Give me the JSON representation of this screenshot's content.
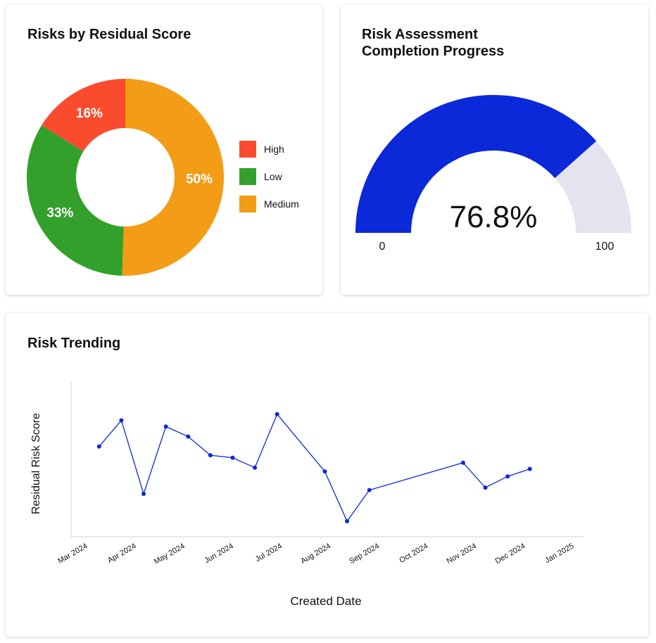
{
  "charts": {
    "donut": {
      "title": "Risks by Residual Score",
      "slices": [
        {
          "name": "High",
          "value": 16,
          "label": "16%",
          "color": "#fb4b2f"
        },
        {
          "name": "Low",
          "value": 33,
          "label": "33%",
          "color": "#34a02c"
        },
        {
          "name": "Medium",
          "value": 50,
          "label": "50%",
          "color": "#f39c16"
        }
      ]
    },
    "gauge": {
      "title_line1": "Risk Assessment",
      "title_line2": "Completion Progress",
      "value": 76.8,
      "value_label": "76.8%",
      "min_label": "0",
      "max_label": "100",
      "fill_color": "#0b28d9",
      "track_color": "#e3e4ef"
    },
    "trend": {
      "title": "Risk Trending",
      "xlabel": "Created Date",
      "ylabel": "Residual Risk Score",
      "ticks": [
        "Mar 2024",
        "Apr 2024",
        "May 2024",
        "Jun 2024",
        "Jul 2024",
        "Aug 2024",
        "Sep 2024",
        "Oct 2024",
        "Nov 2024",
        "Dec 2024",
        "Jan 2025"
      ],
      "line_color": "#0b28d9"
    }
  },
  "chart_data": [
    {
      "type": "pie",
      "title": "Risks by Residual Score",
      "labels": [
        "High",
        "Low",
        "Medium"
      ],
      "values": [
        16,
        33,
        50
      ],
      "data_labels": [
        "16%",
        "33%",
        "50%"
      ],
      "legend": "right"
    },
    {
      "type": "gauge",
      "title": "Risk Assessment Completion Progress",
      "value": 76.8,
      "min": 0,
      "max": 100
    },
    {
      "type": "line",
      "title": "Risk Trending",
      "xlabel": "Created Date",
      "ylabel": "Residual Risk Score",
      "xlim": [
        "2024-03-01",
        "2025-01-01"
      ],
      "ylim": [
        0,
        100
      ],
      "y_tick_labels_shown": false,
      "x": [
        "2024-03-08",
        "2024-03-22",
        "2024-04-05",
        "2024-04-19",
        "2024-05-03",
        "2024-05-17",
        "2024-05-31",
        "2024-06-14",
        "2024-06-28",
        "2024-07-28",
        "2024-08-11",
        "2024-08-25",
        "2024-10-23",
        "2024-11-06",
        "2024-11-20",
        "2024-12-04"
      ],
      "series": [
        {
          "values": [
            64,
            85,
            26,
            80,
            72,
            57,
            55,
            47,
            90,
            44,
            4,
            29,
            51,
            31,
            40,
            46
          ]
        }
      ]
    }
  ]
}
